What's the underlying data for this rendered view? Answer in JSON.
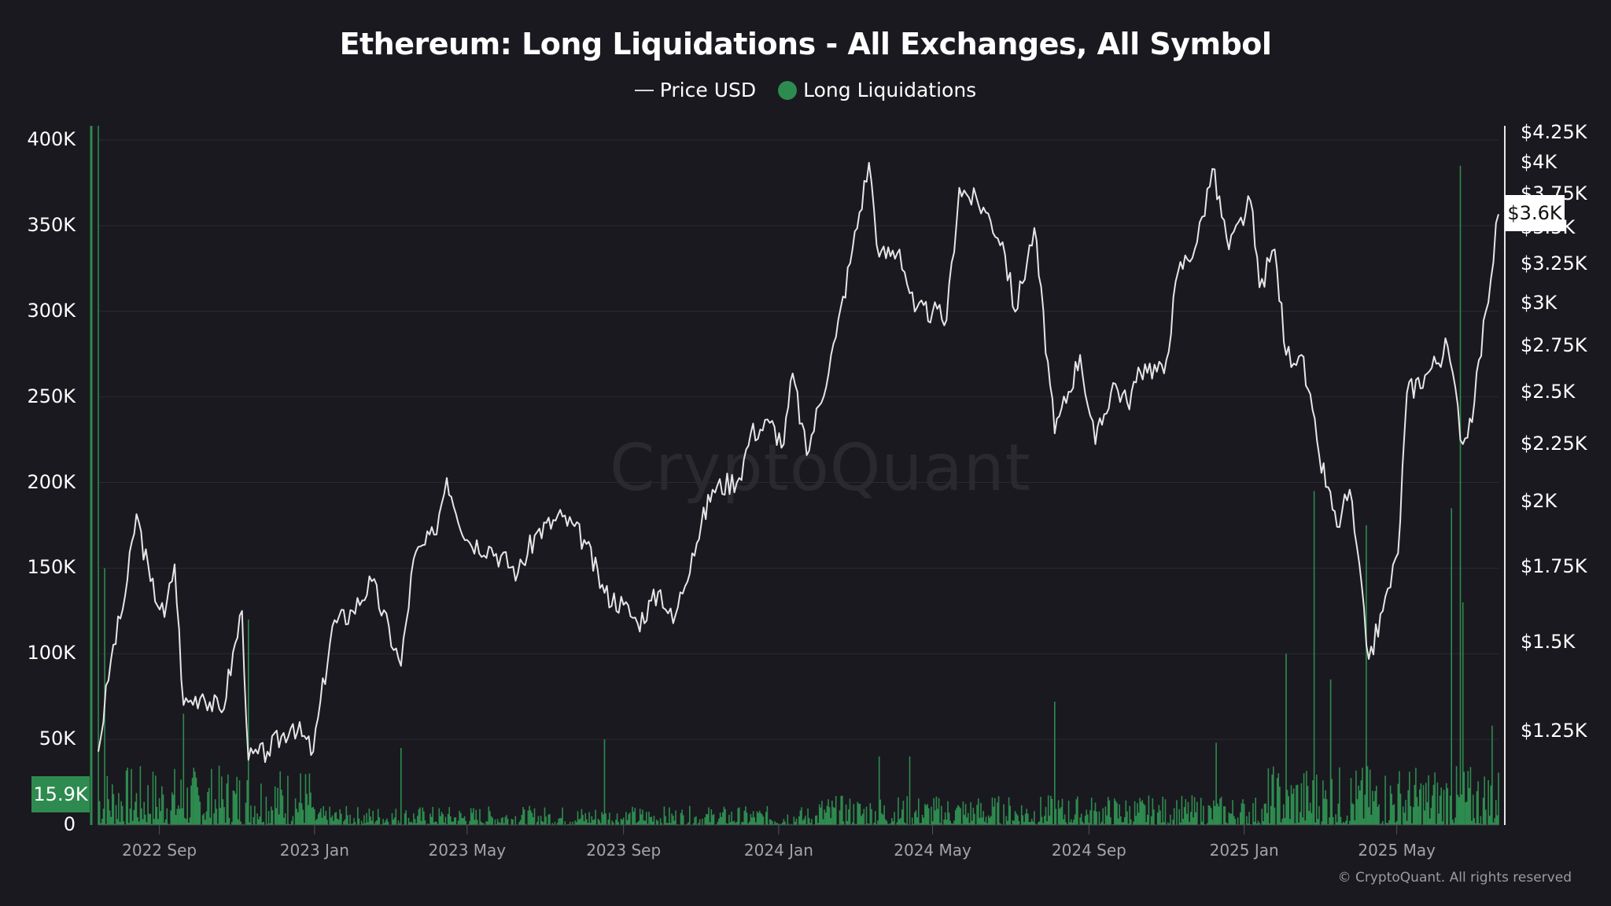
{
  "header": {
    "title": "Ethereum: Long Liquidations - All Exchanges, All Symbol"
  },
  "legend": {
    "items": [
      {
        "label": "Price USD",
        "marker": "line",
        "color": "#d9d9d9"
      },
      {
        "label": "Long Liquidations",
        "marker": "dot",
        "color": "#2e8b4f"
      }
    ]
  },
  "watermark": "CryptoQuant",
  "copyright": "© CryptoQuant. All rights reserved",
  "badges": {
    "left_current": "15.9K",
    "right_current": "$3.6K"
  },
  "colors": {
    "background": "#1a191f",
    "grid": "#2b2a31",
    "price_line": "#e6e6e6",
    "liquidation_bar": "#2e8b4f",
    "badge_left_bg": "#2e8b4f",
    "badge_right_bg": "#ffffff"
  },
  "axes": {
    "left_ticks": [
      "0",
      "50K",
      "100K",
      "150K",
      "200K",
      "250K",
      "300K",
      "350K",
      "400K"
    ],
    "right_ticks": [
      "$1.25K",
      "$1.5K",
      "$1.75K",
      "$2K",
      "$2.25K",
      "$2.5K",
      "$2.75K",
      "$3K",
      "$3.25K",
      "$3.5K",
      "$3.75K",
      "$4K",
      "$4.25K"
    ],
    "x_ticks": [
      "2022 Sep",
      "2023 Jan",
      "2023 May",
      "2023 Sep",
      "2024 Jan",
      "2024 May",
      "2024 Sep",
      "2025 Jan",
      "2025 May"
    ]
  },
  "chart_data": {
    "type": "bar+line",
    "title": "Ethereum: Long Liquidations - All Exchanges, All Symbol",
    "xlabel": "",
    "ylabel_left": "Long Liquidations",
    "ylabel_right": "Price USD",
    "y_left_range": [
      0,
      400000
    ],
    "y_right_range": [
      1150,
      4300
    ],
    "y_right_scale": "log",
    "grid": true,
    "legend_position": "top",
    "x_range": [
      "2022-07-15",
      "2025-07-20"
    ],
    "x_ticks": [
      "2022 Sep",
      "2023 Jan",
      "2023 May",
      "2023 Sep",
      "2024 Jan",
      "2024 May",
      "2024 Sep",
      "2025 Jan",
      "2025 May"
    ],
    "series": [
      {
        "name": "Price USD",
        "axis": "right",
        "type": "line",
        "points": [
          [
            "2022-07-15",
            1200
          ],
          [
            "2022-07-25",
            1450
          ],
          [
            "2022-08-05",
            1650
          ],
          [
            "2022-08-14",
            1950
          ],
          [
            "2022-08-25",
            1700
          ],
          [
            "2022-09-05",
            1580
          ],
          [
            "2022-09-13",
            1760
          ],
          [
            "2022-09-20",
            1320
          ],
          [
            "2022-10-05",
            1350
          ],
          [
            "2022-10-20",
            1300
          ],
          [
            "2022-11-05",
            1600
          ],
          [
            "2022-11-10",
            1180
          ],
          [
            "2022-11-25",
            1200
          ],
          [
            "2022-12-15",
            1270
          ],
          [
            "2022-12-31",
            1200
          ],
          [
            "2023-01-15",
            1550
          ],
          [
            "2023-01-31",
            1600
          ],
          [
            "2023-02-15",
            1700
          ],
          [
            "2023-03-10",
            1430
          ],
          [
            "2023-03-20",
            1780
          ],
          [
            "2023-04-05",
            1870
          ],
          [
            "2023-04-15",
            2100
          ],
          [
            "2023-05-01",
            1850
          ],
          [
            "2023-05-20",
            1820
          ],
          [
            "2023-06-10",
            1730
          ],
          [
            "2023-06-25",
            1880
          ],
          [
            "2023-07-15",
            1940
          ],
          [
            "2023-08-01",
            1850
          ],
          [
            "2023-08-17",
            1660
          ],
          [
            "2023-09-01",
            1620
          ],
          [
            "2023-09-12",
            1560
          ],
          [
            "2023-09-30",
            1670
          ],
          [
            "2023-10-10",
            1560
          ],
          [
            "2023-10-25",
            1800
          ],
          [
            "2023-11-10",
            2050
          ],
          [
            "2023-12-01",
            2100
          ],
          [
            "2023-12-10",
            2300
          ],
          [
            "2023-12-25",
            2350
          ],
          [
            "2024-01-05",
            2250
          ],
          [
            "2024-01-12",
            2600
          ],
          [
            "2024-01-23",
            2200
          ],
          [
            "2024-02-15",
            2800
          ],
          [
            "2024-02-28",
            3350
          ],
          [
            "2024-03-12",
            4000
          ],
          [
            "2024-03-20",
            3300
          ],
          [
            "2024-04-05",
            3350
          ],
          [
            "2024-04-17",
            2950
          ],
          [
            "2024-05-01",
            2950
          ],
          [
            "2024-05-12",
            2900
          ],
          [
            "2024-05-22",
            3800
          ],
          [
            "2024-06-10",
            3650
          ],
          [
            "2024-06-25",
            3400
          ],
          [
            "2024-07-05",
            2950
          ],
          [
            "2024-07-20",
            3500
          ],
          [
            "2024-08-05",
            2300
          ],
          [
            "2024-08-25",
            2700
          ],
          [
            "2024-09-06",
            2250
          ],
          [
            "2024-09-20",
            2550
          ],
          [
            "2024-10-01",
            2450
          ],
          [
            "2024-10-15",
            2650
          ],
          [
            "2024-10-30",
            2600
          ],
          [
            "2024-11-10",
            3200
          ],
          [
            "2024-11-25",
            3400
          ],
          [
            "2024-12-07",
            3950
          ],
          [
            "2024-12-20",
            3350
          ],
          [
            "2025-01-06",
            3700
          ],
          [
            "2025-01-13",
            3100
          ],
          [
            "2025-01-25",
            3350
          ],
          [
            "2025-02-03",
            2700
          ],
          [
            "2025-02-15",
            2700
          ],
          [
            "2025-03-01",
            2200
          ],
          [
            "2025-03-15",
            1900
          ],
          [
            "2025-03-25",
            2050
          ],
          [
            "2025-04-09",
            1450
          ],
          [
            "2025-04-20",
            1600
          ],
          [
            "2025-05-02",
            1800
          ],
          [
            "2025-05-09",
            2500
          ],
          [
            "2025-05-25",
            2600
          ],
          [
            "2025-06-10",
            2750
          ],
          [
            "2025-06-22",
            2250
          ],
          [
            "2025-07-01",
            2450
          ],
          [
            "2025-07-10",
            2950
          ],
          [
            "2025-07-20",
            3600
          ]
        ]
      },
      {
        "name": "Long Liquidations",
        "axis": "left",
        "type": "bar",
        "notable_spikes": [
          [
            "2022-07-15",
            410000
          ],
          [
            "2022-07-20",
            150000
          ],
          [
            "2022-09-20",
            65000
          ],
          [
            "2022-11-10",
            120000
          ],
          [
            "2023-03-10",
            45000
          ],
          [
            "2023-08-17",
            50000
          ],
          [
            "2024-03-20",
            40000
          ],
          [
            "2024-04-13",
            40000
          ],
          [
            "2024-08-05",
            72000
          ],
          [
            "2024-12-10",
            48000
          ],
          [
            "2025-02-03",
            100000
          ],
          [
            "2025-02-25",
            195000
          ],
          [
            "2025-03-10",
            85000
          ],
          [
            "2025-04-07",
            175000
          ],
          [
            "2025-06-22",
            130000
          ],
          [
            "2025-06-13",
            185000
          ],
          [
            "2025-06-20",
            385000
          ],
          [
            "2025-07-15",
            58000
          ]
        ],
        "typical_range": [
          0,
          30000
        ],
        "latest_value": 15900
      }
    ]
  }
}
